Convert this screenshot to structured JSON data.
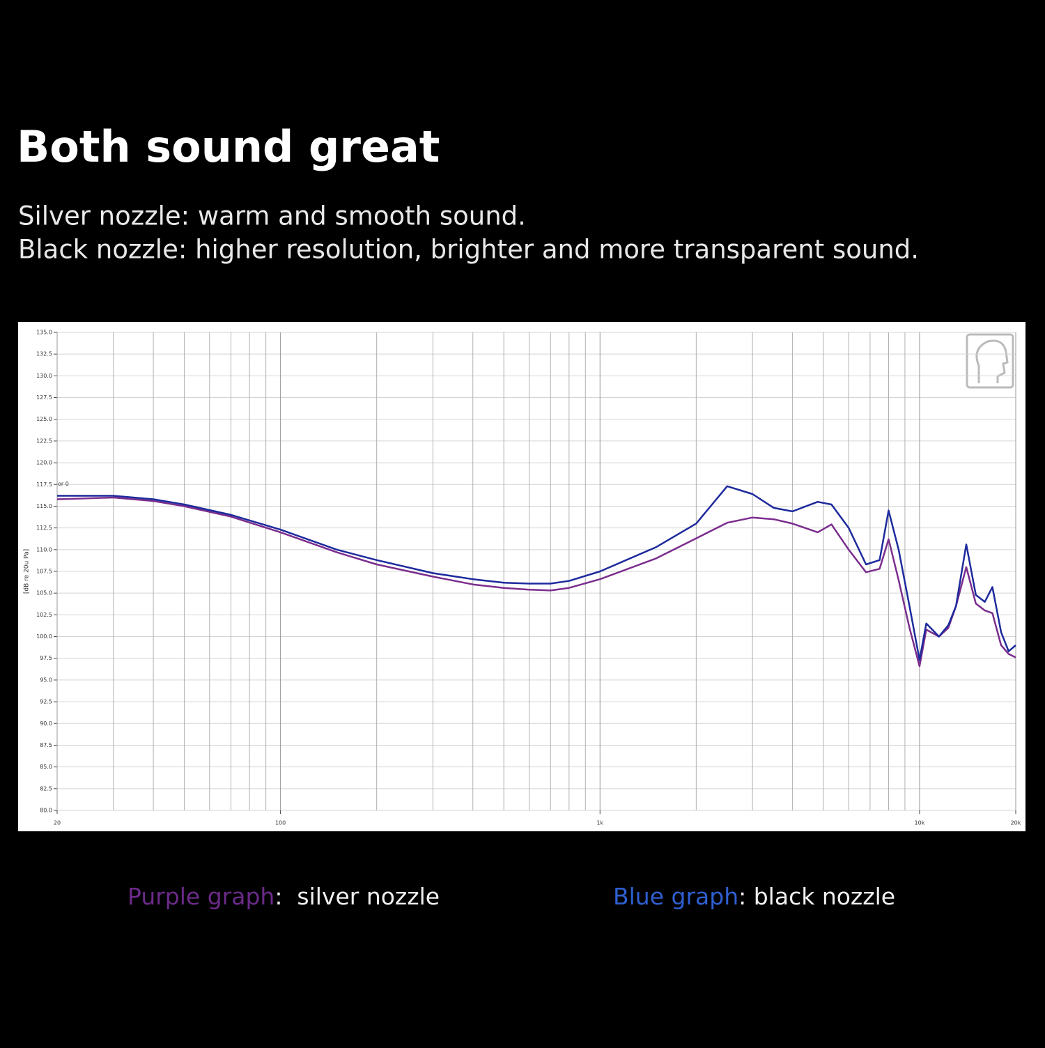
{
  "chart_data": {
    "type": "line",
    "title": "Both sound great",
    "subtitle": [
      "Silver nozzle: warm and smooth sound.",
      "Black nozzle: higher resolution, brighter and more transparent sound."
    ],
    "ylabel": "[dB re 20u Pa]",
    "annotation": "or 0",
    "xscale": "log",
    "grid": true,
    "xlim": [
      20,
      20000
    ],
    "ylim": [
      80,
      135
    ],
    "xticks": [
      20,
      100,
      {
        "value": 1000,
        "label": "1k"
      },
      {
        "value": 10000,
        "label": "10k"
      },
      {
        "value": 20000,
        "label": "20k"
      }
    ],
    "xgrid_lines": [
      30,
      40,
      50,
      60,
      70,
      80,
      90,
      200,
      300,
      400,
      500,
      600,
      700,
      800,
      900,
      2000,
      3000,
      4000,
      5000,
      6000,
      7000,
      8000,
      9000
    ],
    "yticks": [
      {
        "value": 80,
        "label": "80.0"
      },
      {
        "value": 82.5,
        "label": "82.5"
      },
      {
        "value": 85,
        "label": "85.0"
      },
      {
        "value": 87.5,
        "label": "87.5"
      },
      {
        "value": 90,
        "label": "90.0"
      },
      {
        "value": 92.5,
        "label": "92.5"
      },
      {
        "value": 95,
        "label": "95.0"
      },
      {
        "value": 97.5,
        "label": "97.5"
      },
      {
        "value": 100,
        "label": "100.0"
      },
      {
        "value": 102.5,
        "label": "102.5"
      },
      {
        "value": 105,
        "label": "105.0"
      },
      {
        "value": 107.5,
        "label": "107.5"
      },
      {
        "value": 110,
        "label": "110.0"
      },
      {
        "value": 112.5,
        "label": "112.5"
      },
      {
        "value": 115,
        "label": "115.0"
      },
      {
        "value": 117.5,
        "label": "117.5"
      },
      {
        "value": 120,
        "label": "120.0"
      },
      {
        "value": 122.5,
        "label": "122.5"
      },
      {
        "value": 125,
        "label": "125.0"
      },
      {
        "value": 127.5,
        "label": "127.5"
      },
      {
        "value": 130,
        "label": "130.0"
      },
      {
        "value": 132.5,
        "label": "132.5"
      },
      {
        "value": 135,
        "label": "135.0"
      }
    ],
    "x": [
      20,
      30,
      40,
      50,
      70,
      100,
      150,
      200,
      300,
      400,
      500,
      600,
      700,
      800,
      1000,
      1500,
      2000,
      2500,
      3000,
      3500,
      4000,
      4800,
      5300,
      6000,
      6800,
      7500,
      8000,
      8600,
      9300,
      10000,
      10500,
      11500,
      12300,
      13000,
      14000,
      15000,
      16000,
      16900,
      18000,
      19000,
      20000
    ],
    "series": [
      {
        "name": "Purple graph",
        "description": ":  silver nozzle",
        "color": "#7b2d8e",
        "label_color": "#6b2a88",
        "values": [
          115.8,
          116.0,
          115.6,
          115.0,
          113.8,
          112.0,
          109.7,
          108.3,
          106.9,
          106.0,
          105.6,
          105.4,
          105.3,
          105.6,
          106.6,
          109.0,
          111.3,
          113.1,
          113.7,
          113.5,
          113.0,
          112.0,
          112.9,
          110.0,
          107.4,
          107.8,
          111.2,
          106.5,
          101.0,
          96.6,
          100.8,
          100.0,
          101.0,
          103.5,
          108.0,
          103.8,
          103.0,
          102.7,
          99.0,
          98.0,
          97.6
        ]
      },
      {
        "name": "Blue graph",
        "description": ": black nozzle",
        "color": "#1d2a9c",
        "label_color": "#2f5fd0",
        "values": [
          116.2,
          116.2,
          115.8,
          115.2,
          114.0,
          112.3,
          110.0,
          108.8,
          107.3,
          106.6,
          106.2,
          106.1,
          106.1,
          106.4,
          107.5,
          110.3,
          113.0,
          117.3,
          116.4,
          114.8,
          114.4,
          115.5,
          115.2,
          112.5,
          108.3,
          108.8,
          114.5,
          110.0,
          103.5,
          97.3,
          101.5,
          100.0,
          101.3,
          103.5,
          110.6,
          104.8,
          104.0,
          105.7,
          100.5,
          98.3,
          99.0
        ]
      }
    ]
  }
}
